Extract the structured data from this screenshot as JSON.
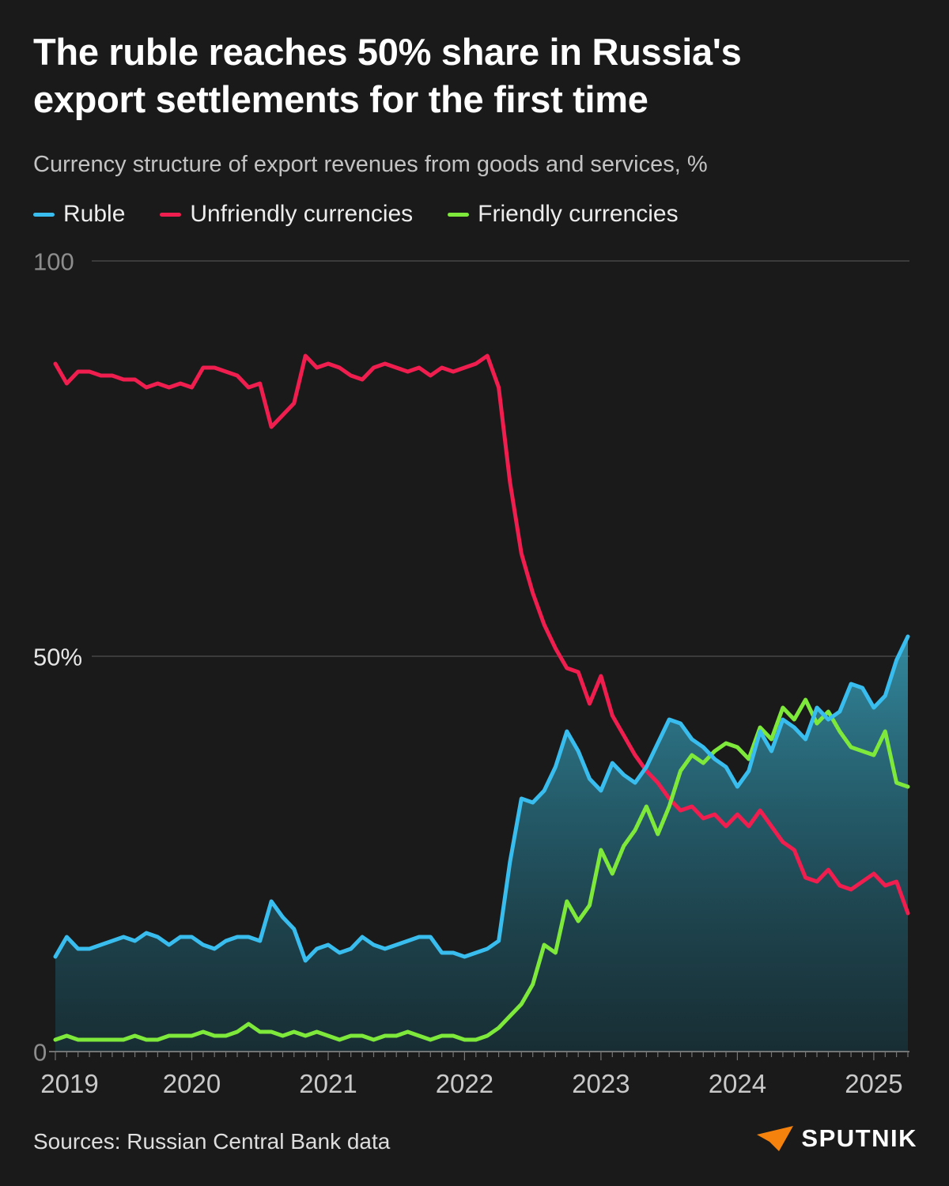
{
  "header": {
    "title_line1": "The ruble reaches 50% share in Russia's",
    "title_line2": "export settlements for the first time",
    "subtitle": "Currency structure of export revenues from goods and services, %"
  },
  "footer": {
    "source": "Sources: Russian Central Bank data",
    "brand": "SPUTNIK"
  },
  "colors": {
    "background": "#1a1a1a",
    "title": "#ffffff",
    "subtitle": "#c3c3c3",
    "grid": "#4f4f4f",
    "baseline": "#8f8f8f",
    "tick": "#757575",
    "axis_label": "#8d8d8d",
    "axis_label_bright": "#e6e6e6",
    "axis_label_x": "#c9c9c9",
    "area_top": "rgba(56,160,186,0.85)",
    "area_bottom": "rgba(22,70,84,0.45)",
    "brand_orange": "#f5820d"
  },
  "chart_data": {
    "type": "line",
    "title": "The ruble reaches 50% share in Russia's export settlements for the first time",
    "subtitle": "Currency structure of export revenues from goods and services, %",
    "x_unit": "month",
    "x_range": [
      "2019-01",
      "2025-04"
    ],
    "x_tick_labels": [
      "2019",
      "2020",
      "2021",
      "2022",
      "2023",
      "2024",
      "2025"
    ],
    "ylim": [
      0,
      100
    ],
    "y_ticks": [
      {
        "value": 100,
        "label": "100",
        "emphasis": false
      },
      {
        "value": 50,
        "label": "50%",
        "emphasis": true
      },
      {
        "value": 0,
        "label": "0",
        "emphasis": false
      }
    ],
    "grid": "horizontal",
    "legend_position": "top",
    "series": [
      {
        "id": "ruble",
        "name": "Ruble",
        "color": "#38bdee",
        "area_fill": true,
        "values": [
          12,
          14.5,
          13,
          13,
          13.5,
          14,
          14.5,
          14,
          15,
          14.5,
          13.5,
          14.5,
          14.5,
          13.5,
          13,
          14,
          14.5,
          14.5,
          14,
          19,
          17,
          15.5,
          11.5,
          13,
          13.5,
          12.5,
          13,
          14.5,
          13.5,
          13,
          13.5,
          14,
          14.5,
          14.5,
          12.5,
          12.5,
          12,
          12.5,
          13,
          14,
          24,
          32,
          31.5,
          33,
          36,
          40.5,
          38,
          34.5,
          33,
          36.5,
          35,
          34,
          36,
          39,
          42,
          41.5,
          39.5,
          38.5,
          37,
          36,
          33.5,
          35.5,
          40.5,
          38,
          42,
          41,
          39.5,
          43.5,
          42,
          43,
          46.5,
          46,
          43.5,
          45,
          49.5,
          52.5
        ]
      },
      {
        "id": "unfriendly",
        "name": "Unfriendly currencies",
        "color": "#f01e4f",
        "area_fill": false,
        "values": [
          87,
          84.5,
          86,
          86,
          85.5,
          85.5,
          85,
          85,
          84,
          84.5,
          84,
          84.5,
          84,
          86.5,
          86.5,
          86,
          85.5,
          84,
          84.5,
          79,
          80.5,
          82,
          88,
          86.5,
          87,
          86.5,
          85.5,
          85,
          86.5,
          87,
          86.5,
          86,
          86.5,
          85.5,
          86.5,
          86,
          86.5,
          87,
          88,
          84,
          72,
          63,
          58,
          54,
          51,
          48.5,
          48,
          44,
          47.5,
          42.5,
          40,
          37.5,
          35.5,
          34,
          32,
          30.5,
          31,
          29.5,
          30,
          28.5,
          30,
          28.5,
          30.5,
          28.5,
          26.5,
          25.5,
          22,
          21.5,
          23,
          21,
          20.5,
          21.5,
          22.5,
          21,
          21.5,
          17.5
        ]
      },
      {
        "id": "friendly",
        "name": "Friendly currencies",
        "color": "#7ee83b",
        "area_fill": false,
        "values": [
          1.5,
          2,
          1.5,
          1.5,
          1.5,
          1.5,
          1.5,
          2,
          1.5,
          1.5,
          2,
          2,
          2,
          2.5,
          2,
          2,
          2.5,
          3.5,
          2.5,
          2.5,
          2,
          2.5,
          2,
          2.5,
          2,
          1.5,
          2,
          2,
          1.5,
          2,
          2,
          2.5,
          2,
          1.5,
          2,
          2,
          1.5,
          1.5,
          2,
          3,
          4.5,
          6,
          8.5,
          13.5,
          12.5,
          19,
          16.5,
          18.5,
          25.5,
          22.5,
          26,
          28,
          31,
          27.5,
          31,
          35.5,
          37.5,
          36.5,
          38,
          39,
          38.5,
          37,
          41,
          39.5,
          43.5,
          42,
          44.5,
          41.5,
          43,
          40.5,
          38.5,
          38,
          37.5,
          40.5,
          34,
          33.5
        ]
      }
    ]
  }
}
